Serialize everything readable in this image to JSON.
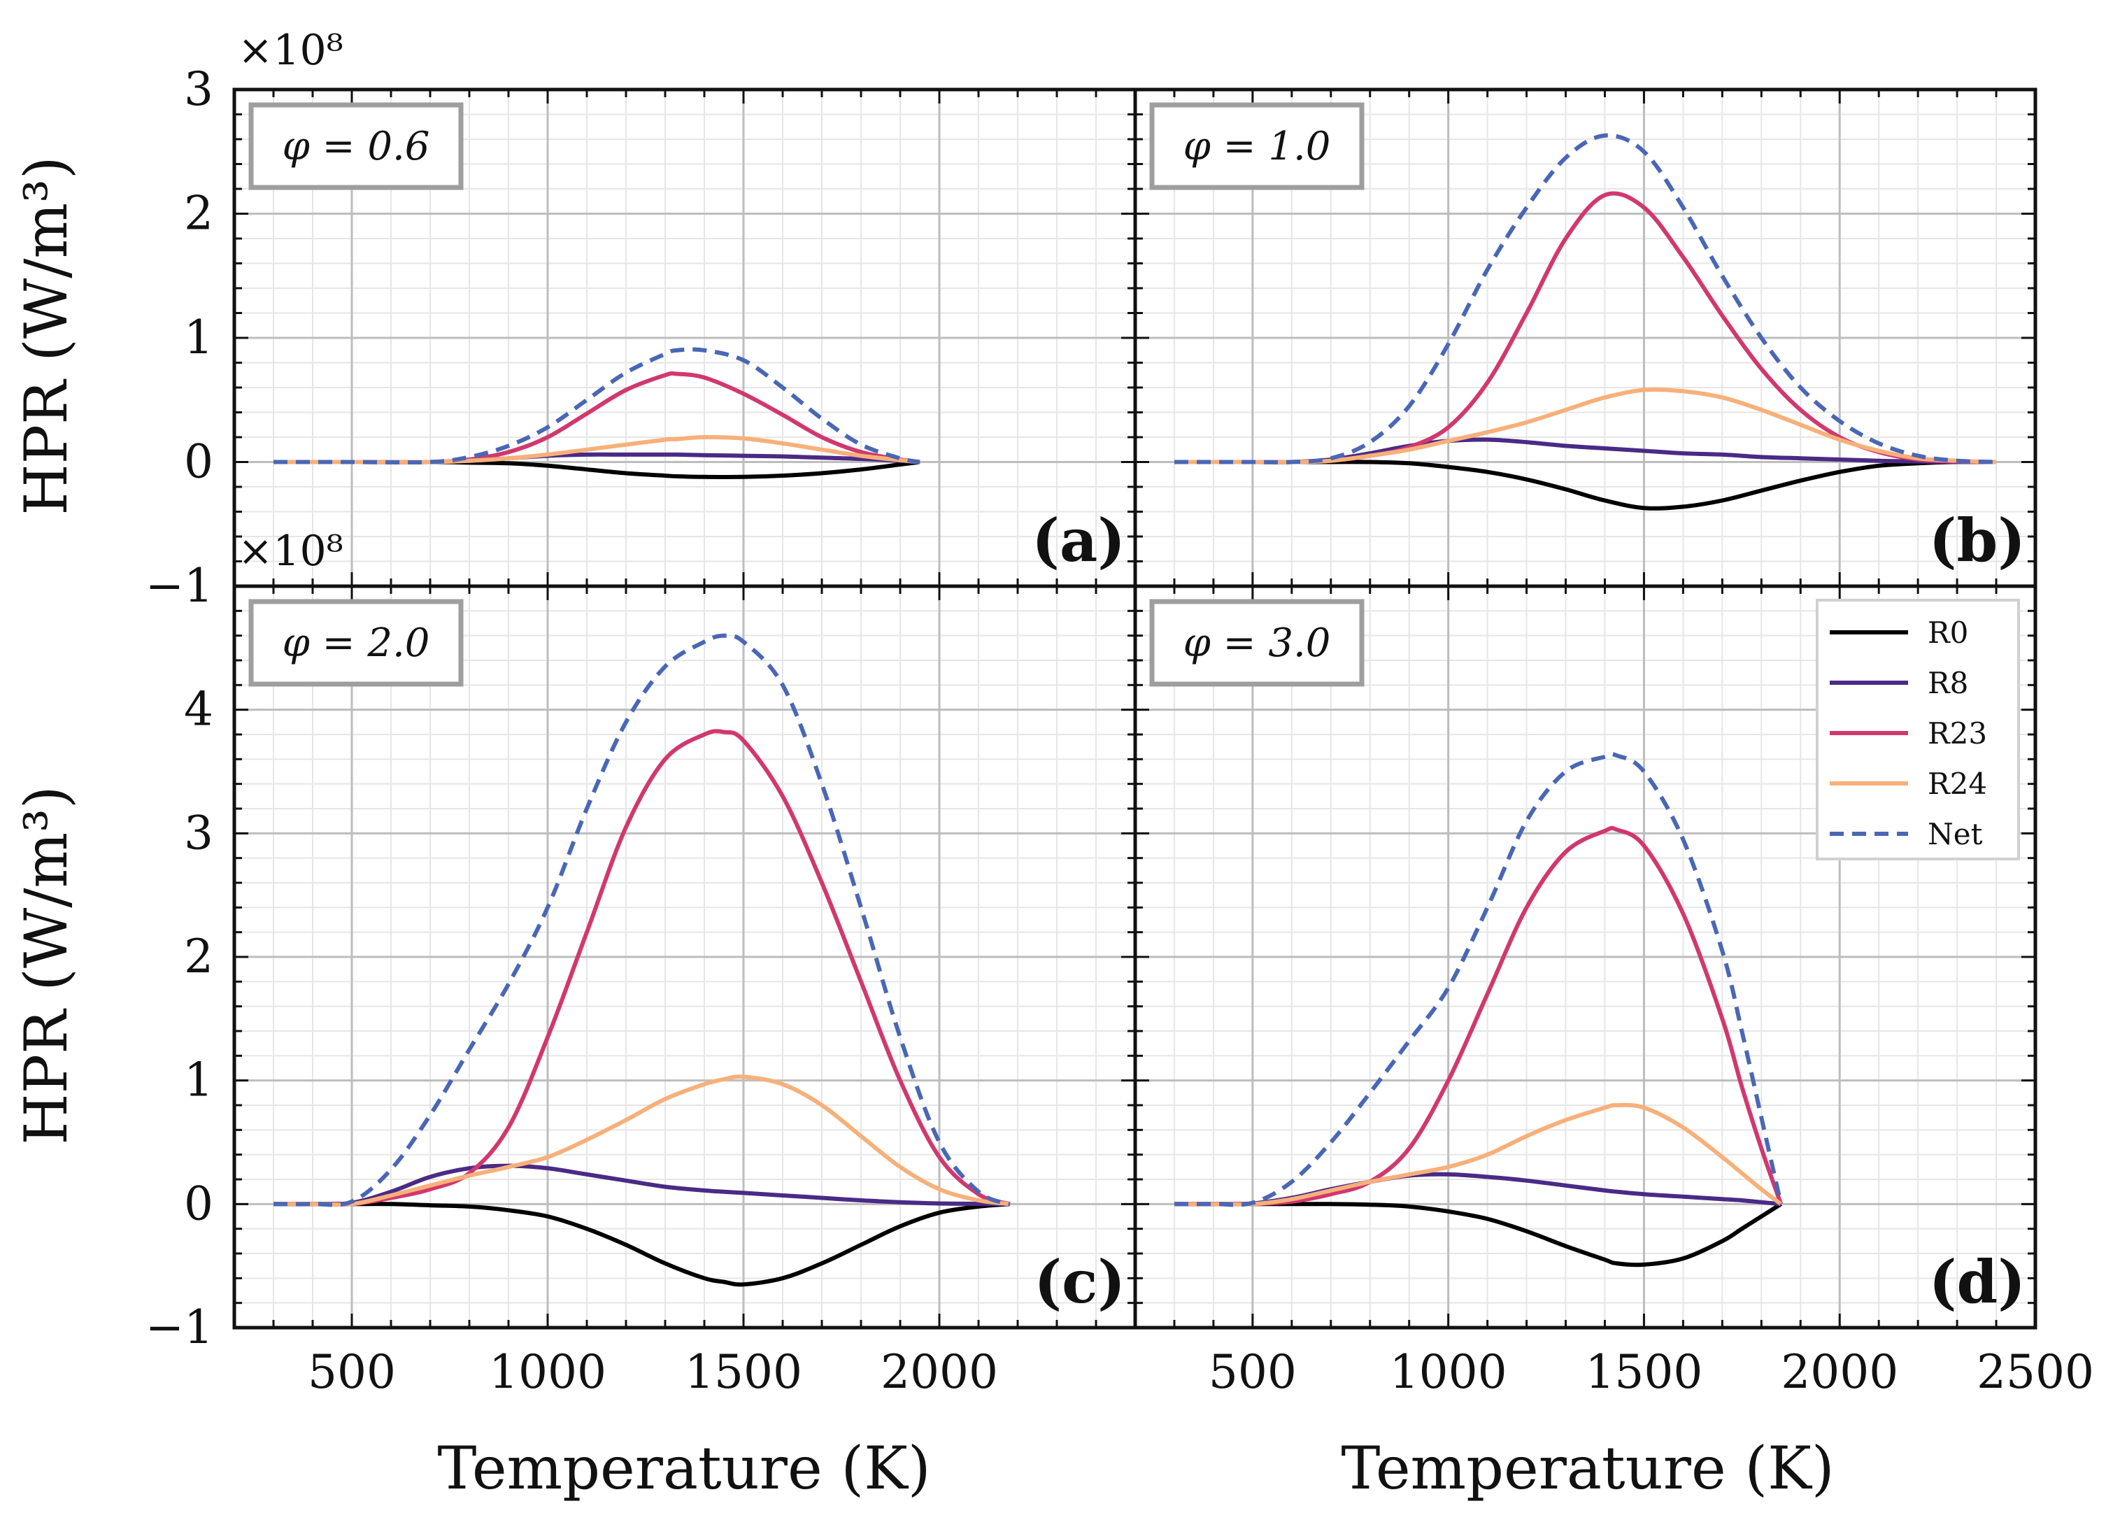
{
  "figure": {
    "ylabel": "HPR (W/m³)",
    "xlabel": "Temperature (K)",
    "y_exponent": "×10⁸",
    "x_ticks": [
      500,
      1000,
      1500,
      2000,
      2500
    ],
    "x_tick_labels": [
      "500",
      "1000",
      "1500",
      "2000",
      "2500"
    ],
    "legend": [
      {
        "name": "R0",
        "color": "#000000",
        "style": "solid"
      },
      {
        "name": "R8",
        "color": "#4b2a86",
        "style": "solid"
      },
      {
        "name": "R23",
        "color": "#d1386e",
        "style": "solid"
      },
      {
        "name": "R24",
        "color": "#f7b07a",
        "style": "solid"
      },
      {
        "name": "Net",
        "color": "#4a67b5",
        "style": "dashed"
      }
    ]
  },
  "chart_data": [
    {
      "type": "line",
      "panel": "a",
      "tag": "(a)",
      "title": "φ = 0.6",
      "xlim": [
        200,
        2500
      ],
      "ylim": [
        -1,
        3
      ],
      "y_ticks": [
        -1,
        0,
        1,
        2,
        3
      ],
      "y_tick_labels": [
        "−1",
        "0",
        "1",
        "2",
        "3"
      ],
      "x": [
        300,
        500,
        700,
        800,
        900,
        1000,
        1100,
        1200,
        1300,
        1330,
        1400,
        1500,
        1600,
        1700,
        1800,
        1900,
        1950
      ],
      "series": [
        {
          "name": "R0",
          "values": [
            0,
            0,
            0,
            -0.005,
            -0.01,
            -0.03,
            -0.06,
            -0.09,
            -0.11,
            -0.115,
            -0.12,
            -0.12,
            -0.11,
            -0.09,
            -0.06,
            -0.02,
            0
          ]
        },
        {
          "name": "R8",
          "values": [
            0,
            0,
            0,
            0.01,
            0.03,
            0.05,
            0.06,
            0.06,
            0.06,
            0.06,
            0.055,
            0.05,
            0.045,
            0.035,
            0.025,
            0.01,
            0
          ]
        },
        {
          "name": "R23",
          "values": [
            0,
            0,
            0,
            0.02,
            0.08,
            0.2,
            0.39,
            0.58,
            0.7,
            0.71,
            0.68,
            0.55,
            0.38,
            0.2,
            0.08,
            0.02,
            0
          ]
        },
        {
          "name": "R24",
          "values": [
            0,
            0,
            0,
            0.01,
            0.03,
            0.06,
            0.1,
            0.14,
            0.18,
            0.185,
            0.2,
            0.19,
            0.15,
            0.1,
            0.05,
            0.015,
            0
          ]
        },
        {
          "name": "Net",
          "values": [
            0,
            0,
            0,
            0.04,
            0.13,
            0.28,
            0.5,
            0.72,
            0.87,
            0.9,
            0.9,
            0.82,
            0.6,
            0.35,
            0.14,
            0.03,
            0
          ]
        }
      ]
    },
    {
      "type": "line",
      "panel": "b",
      "tag": "(b)",
      "title": "φ = 1.0",
      "xlim": [
        200,
        2500
      ],
      "ylim": [
        -1,
        3
      ],
      "y_ticks": [
        -1,
        0,
        1,
        2,
        3
      ],
      "y_tick_labels": [
        "−1",
        "0",
        "1",
        "2",
        "3"
      ],
      "x": [
        300,
        500,
        600,
        700,
        800,
        900,
        1000,
        1100,
        1200,
        1300,
        1400,
        1500,
        1600,
        1700,
        1800,
        1900,
        2000,
        2100,
        2200,
        2300,
        2400
      ],
      "series": [
        {
          "name": "R0",
          "values": [
            0,
            0,
            0,
            0,
            0,
            -0.01,
            -0.04,
            -0.08,
            -0.14,
            -0.22,
            -0.31,
            -0.37,
            -0.36,
            -0.31,
            -0.23,
            -0.15,
            -0.08,
            -0.03,
            -0.01,
            0,
            0
          ]
        },
        {
          "name": "R8",
          "values": [
            0,
            0,
            0,
            0.02,
            0.07,
            0.13,
            0.17,
            0.18,
            0.16,
            0.13,
            0.11,
            0.09,
            0.07,
            0.06,
            0.04,
            0.03,
            0.02,
            0.01,
            0.005,
            0,
            0
          ]
        },
        {
          "name": "R23",
          "values": [
            0,
            0,
            0,
            0.01,
            0.05,
            0.12,
            0.28,
            0.64,
            1.2,
            1.8,
            2.15,
            2.05,
            1.65,
            1.18,
            0.75,
            0.42,
            0.2,
            0.08,
            0.02,
            0.005,
            0
          ]
        },
        {
          "name": "R24",
          "values": [
            0,
            0,
            0,
            0.01,
            0.05,
            0.1,
            0.17,
            0.24,
            0.32,
            0.42,
            0.52,
            0.58,
            0.57,
            0.52,
            0.42,
            0.3,
            0.18,
            0.09,
            0.03,
            0.01,
            0
          ]
        },
        {
          "name": "Net",
          "values": [
            0,
            0,
            0,
            0.03,
            0.16,
            0.45,
            0.95,
            1.55,
            2.05,
            2.45,
            2.63,
            2.5,
            2.05,
            1.5,
            1.0,
            0.6,
            0.33,
            0.15,
            0.05,
            0.01,
            0
          ]
        }
      ]
    },
    {
      "type": "line",
      "panel": "c",
      "tag": "(c)",
      "title": "φ = 2.0",
      "xlim": [
        200,
        2500
      ],
      "ylim": [
        -1,
        5
      ],
      "y_ticks": [
        -1,
        0,
        1,
        2,
        3,
        4
      ],
      "y_tick_labels": [
        "−1",
        "0",
        "1",
        "2",
        "3",
        "4"
      ],
      "x": [
        300,
        400,
        500,
        600,
        700,
        800,
        900,
        1000,
        1100,
        1200,
        1300,
        1400,
        1450,
        1500,
        1600,
        1700,
        1800,
        1900,
        2000,
        2100,
        2180
      ],
      "series": [
        {
          "name": "R0",
          "values": [
            0,
            0,
            0,
            0,
            -0.01,
            -0.02,
            -0.05,
            -0.1,
            -0.2,
            -0.33,
            -0.48,
            -0.6,
            -0.63,
            -0.65,
            -0.6,
            -0.48,
            -0.33,
            -0.18,
            -0.07,
            -0.02,
            0
          ]
        },
        {
          "name": "R8",
          "values": [
            0,
            0,
            0.01,
            0.1,
            0.22,
            0.29,
            0.31,
            0.29,
            0.24,
            0.19,
            0.14,
            0.11,
            0.1,
            0.09,
            0.07,
            0.05,
            0.03,
            0.015,
            0.005,
            0.002,
            0
          ]
        },
        {
          "name": "R23",
          "values": [
            0,
            0,
            0,
            0.05,
            0.12,
            0.25,
            0.62,
            1.35,
            2.2,
            3.05,
            3.6,
            3.8,
            3.82,
            3.75,
            3.3,
            2.6,
            1.8,
            1.0,
            0.38,
            0.08,
            0
          ]
        },
        {
          "name": "R24",
          "values": [
            0,
            0,
            0,
            0.07,
            0.15,
            0.23,
            0.3,
            0.38,
            0.52,
            0.68,
            0.85,
            0.97,
            1.01,
            1.03,
            0.97,
            0.8,
            0.55,
            0.3,
            0.12,
            0.03,
            0
          ]
        },
        {
          "name": "Net",
          "values": [
            0,
            0,
            0.02,
            0.28,
            0.72,
            1.25,
            1.78,
            2.4,
            3.2,
            3.9,
            4.35,
            4.55,
            4.6,
            4.55,
            4.2,
            3.4,
            2.4,
            1.35,
            0.5,
            0.1,
            0
          ]
        }
      ]
    },
    {
      "type": "line",
      "panel": "d",
      "tag": "(d)",
      "title": "φ = 3.0",
      "xlim": [
        200,
        2500
      ],
      "ylim": [
        -1,
        5
      ],
      "y_ticks": [
        -1,
        0,
        1,
        2,
        3,
        4
      ],
      "y_tick_labels": [
        "−1",
        "0",
        "1",
        "2",
        "3",
        "4"
      ],
      "x": [
        300,
        400,
        500,
        600,
        700,
        800,
        900,
        1000,
        1100,
        1200,
        1300,
        1400,
        1430,
        1500,
        1600,
        1700,
        1750,
        1800,
        1850
      ],
      "series": [
        {
          "name": "R0",
          "values": [
            0,
            0,
            0,
            0,
            0,
            -0.005,
            -0.02,
            -0.06,
            -0.12,
            -0.22,
            -0.34,
            -0.45,
            -0.48,
            -0.49,
            -0.44,
            -0.3,
            -0.2,
            -0.1,
            0
          ]
        },
        {
          "name": "R8",
          "values": [
            0,
            0,
            0.005,
            0.05,
            0.12,
            0.18,
            0.23,
            0.24,
            0.22,
            0.19,
            0.15,
            0.11,
            0.1,
            0.08,
            0.06,
            0.04,
            0.03,
            0.015,
            0
          ]
        },
        {
          "name": "R23",
          "values": [
            0,
            0,
            0,
            0.02,
            0.08,
            0.18,
            0.45,
            1.0,
            1.7,
            2.4,
            2.85,
            3.02,
            3.03,
            2.9,
            2.35,
            1.5,
            0.95,
            0.45,
            0
          ]
        },
        {
          "name": "R24",
          "values": [
            0,
            0,
            0,
            0.04,
            0.11,
            0.18,
            0.24,
            0.3,
            0.4,
            0.55,
            0.68,
            0.78,
            0.8,
            0.78,
            0.62,
            0.38,
            0.25,
            0.12,
            0
          ]
        },
        {
          "name": "Net",
          "values": [
            0,
            0,
            0.01,
            0.18,
            0.5,
            0.9,
            1.32,
            1.75,
            2.4,
            3.1,
            3.5,
            3.62,
            3.63,
            3.5,
            2.95,
            2.05,
            1.4,
            0.7,
            0
          ]
        }
      ]
    }
  ]
}
